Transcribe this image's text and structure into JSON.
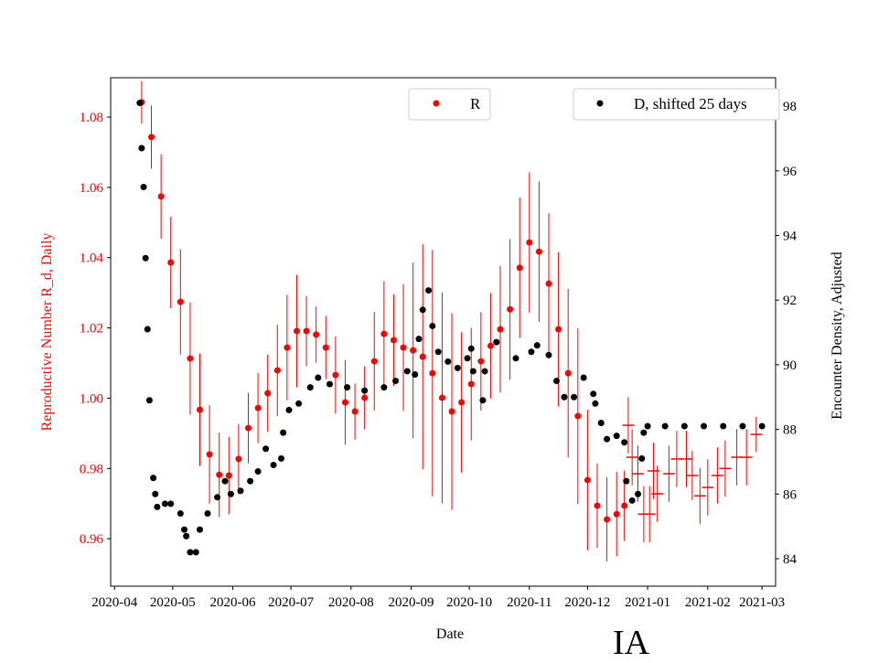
{
  "chart_data": {
    "type": "scatter",
    "xlabel": "Date",
    "ylabel_left": "Reproductive Number R_d, Daily",
    "ylabel_right": "Encounter Density, Adjusted",
    "annotation": "IA",
    "xlim": [
      "2020-03-30",
      "2021-03-08"
    ],
    "ylim_left": [
      0.9465,
      1.0912
    ],
    "ylim_right": [
      83.15,
      98.88
    ],
    "x_ticks": [
      "2020-04-01",
      "2020-05-01",
      "2020-06-01",
      "2020-07-01",
      "2020-08-01",
      "2020-09-01",
      "2020-10-01",
      "2020-11-01",
      "2020-12-01",
      "2021-01-01",
      "2021-02-01",
      "2021-03-01"
    ],
    "x_tick_labels": [
      "2020-04",
      "2020-05",
      "2020-06",
      "2020-07",
      "2020-08",
      "2020-09",
      "2020-10",
      "2020-11",
      "2020-12",
      "2021-01",
      "2021-02",
      "2021-03"
    ],
    "y_ticks_left": [
      "0.96",
      "0.98",
      "1.00",
      "1.02",
      "1.04",
      "1.06",
      "1.08"
    ],
    "y_ticks_right": [
      "84",
      "86",
      "88",
      "90",
      "92",
      "94",
      "96",
      "98"
    ],
    "grid": false,
    "colors": {
      "R": "#ff0000",
      "D": "#000000",
      "left_axis_text": "#ff0000"
    },
    "legends": [
      {
        "label": "R",
        "color": "#ff0000",
        "placement": "top-center"
      },
      {
        "label": "D, shifted 25 days",
        "color": "#000000",
        "placement": "top-right"
      }
    ],
    "series": [
      {
        "name": "R",
        "axis": "left",
        "marker": "dot",
        "points": [
          [
            "2020-04-15",
            1.0842,
            0.006
          ],
          [
            "2020-04-20",
            1.0743,
            0.009
          ],
          [
            "2020-04-25",
            1.0574,
            0.012
          ],
          [
            "2020-04-30",
            1.0386,
            0.013
          ],
          [
            "2020-05-05",
            1.0274,
            0.015
          ],
          [
            "2020-05-10",
            1.0113,
            0.016
          ],
          [
            "2020-05-15",
            0.9967,
            0.016
          ],
          [
            "2020-05-20",
            0.984,
            0.014
          ],
          [
            "2020-05-25",
            0.9782,
            0.012
          ],
          [
            "2020-05-30",
            0.978,
            0.011
          ],
          [
            "2020-06-04",
            0.9827,
            0.01
          ],
          [
            "2020-06-09",
            0.9915,
            0.01
          ],
          [
            "2020-06-14",
            0.9972,
            0.01
          ],
          [
            "2020-06-19",
            1.0014,
            0.011
          ],
          [
            "2020-06-24",
            1.0079,
            0.013
          ],
          [
            "2020-06-29",
            1.0144,
            0.015
          ],
          [
            "2020-07-04",
            1.0191,
            0.016
          ],
          [
            "2020-07-09",
            1.0191,
            0.01
          ],
          [
            "2020-07-14",
            1.0181,
            0.008
          ],
          [
            "2020-07-19",
            1.0144,
            0.009
          ],
          [
            "2020-07-24",
            1.0066,
            0.011
          ],
          [
            "2020-07-29",
            0.9988,
            0.012
          ],
          [
            "2020-08-03",
            0.9962,
            0.008
          ],
          [
            "2020-08-08",
            1.0001,
            0.009
          ],
          [
            "2020-08-13",
            1.0105,
            0.014
          ],
          [
            "2020-08-18",
            1.0183,
            0.015
          ],
          [
            "2020-08-23",
            1.0165,
            0.013
          ],
          [
            "2020-08-28",
            1.0144,
            0.018
          ],
          [
            "2020-09-02",
            1.0136,
            0.025
          ],
          [
            "2020-09-07",
            1.0118,
            0.032
          ],
          [
            "2020-09-12",
            1.0071,
            0.035
          ],
          [
            "2020-09-17",
            1.0001,
            0.03
          ],
          [
            "2020-09-22",
            0.9962,
            0.028
          ],
          [
            "2020-09-27",
            0.9988,
            0.02
          ],
          [
            "2020-10-02",
            1.004,
            0.016
          ],
          [
            "2020-10-07",
            1.0105,
            0.014
          ],
          [
            "2020-10-12",
            1.0149,
            0.015
          ],
          [
            "2020-10-17",
            1.0196,
            0.018
          ],
          [
            "2020-10-22",
            1.0253,
            0.02
          ],
          [
            "2020-10-27",
            1.0371,
            0.02
          ],
          [
            "2020-11-01",
            1.0443,
            0.02
          ],
          [
            "2020-11-06",
            1.0417,
            0.02
          ],
          [
            "2020-11-11",
            1.0326,
            0.02
          ],
          [
            "2020-11-16",
            1.0196,
            0.022
          ],
          [
            "2020-11-21",
            1.0071,
            0.024
          ],
          [
            "2020-11-26",
            0.9949,
            0.025
          ],
          [
            "2020-12-01",
            0.9767,
            0.02
          ],
          [
            "2020-12-06",
            0.9694,
            0.012
          ],
          [
            "2020-12-11",
            0.9655,
            0.012
          ],
          [
            "2020-12-16",
            0.967,
            0.012
          ],
          [
            "2020-12-20",
            0.9694,
            0.01
          ]
        ]
      },
      {
        "name": "R",
        "axis": "left",
        "marker": "cross",
        "points": [
          [
            "2020-12-22",
            0.9923,
            0.008
          ],
          [
            "2020-12-24",
            0.9832,
            0.008
          ],
          [
            "2020-12-27",
            0.9785,
            0.008
          ],
          [
            "2020-12-30",
            0.967,
            0.008
          ],
          [
            "2021-01-02",
            0.967,
            0.008
          ],
          [
            "2021-01-04",
            0.9793,
            0.008
          ],
          [
            "2021-01-06",
            0.9728,
            0.008
          ],
          [
            "2021-01-12",
            0.9785,
            0.008
          ],
          [
            "2021-01-16",
            0.9827,
            0.008
          ],
          [
            "2021-01-21",
            0.9827,
            0.008
          ],
          [
            "2021-01-24",
            0.978,
            0.007
          ],
          [
            "2021-01-28",
            0.9722,
            0.008
          ],
          [
            "2021-02-01",
            0.9746,
            0.008
          ],
          [
            "2021-02-06",
            0.978,
            0.008
          ],
          [
            "2021-02-10",
            0.98,
            0.008
          ],
          [
            "2021-02-16",
            0.9832,
            0.008
          ],
          [
            "2021-02-21",
            0.9832,
            0.008
          ],
          [
            "2021-02-26",
            0.9897,
            0.005
          ]
        ]
      },
      {
        "name": "D, shifted 25 days",
        "axis": "right",
        "marker": "dot",
        "points": [
          [
            "2020-04-14",
            98.1
          ],
          [
            "2020-04-15",
            96.7
          ],
          [
            "2020-04-16",
            95.5
          ],
          [
            "2020-04-17",
            93.3
          ],
          [
            "2020-04-18",
            91.1
          ],
          [
            "2020-04-19",
            88.9
          ],
          [
            "2020-04-21",
            86.5
          ],
          [
            "2020-04-22",
            86.0
          ],
          [
            "2020-04-23",
            85.6
          ],
          [
            "2020-04-27",
            85.7
          ],
          [
            "2020-04-30",
            85.7
          ],
          [
            "2020-05-05",
            85.4
          ],
          [
            "2020-05-07",
            84.9
          ],
          [
            "2020-05-08",
            84.7
          ],
          [
            "2020-05-10",
            84.2
          ],
          [
            "2020-05-13",
            84.2
          ],
          [
            "2020-05-15",
            84.9
          ],
          [
            "2020-05-19",
            85.4
          ],
          [
            "2020-05-24",
            85.9
          ],
          [
            "2020-05-28",
            86.4
          ],
          [
            "2020-05-31",
            86.0
          ],
          [
            "2020-06-05",
            86.1
          ],
          [
            "2020-06-10",
            86.4
          ],
          [
            "2020-06-14",
            86.7
          ],
          [
            "2020-06-18",
            87.4
          ],
          [
            "2020-06-22",
            86.9
          ],
          [
            "2020-06-26",
            87.1
          ],
          [
            "2020-06-27",
            87.9
          ],
          [
            "2020-06-30",
            88.6
          ],
          [
            "2020-07-05",
            88.8
          ],
          [
            "2020-07-11",
            89.3
          ],
          [
            "2020-07-15",
            89.6
          ],
          [
            "2020-07-21",
            89.4
          ],
          [
            "2020-07-30",
            89.3
          ],
          [
            "2020-08-08",
            89.2
          ],
          [
            "2020-08-18",
            89.3
          ],
          [
            "2020-08-24",
            89.5
          ],
          [
            "2020-08-30",
            89.8
          ],
          [
            "2020-09-03",
            89.7
          ],
          [
            "2020-09-05",
            90.8
          ],
          [
            "2020-09-07",
            91.7
          ],
          [
            "2020-09-10",
            92.3
          ],
          [
            "2020-09-12",
            91.2
          ],
          [
            "2020-09-15",
            90.4
          ],
          [
            "2020-09-20",
            90.1
          ],
          [
            "2020-09-25",
            89.9
          ],
          [
            "2020-09-30",
            90.2
          ],
          [
            "2020-10-02",
            90.5
          ],
          [
            "2020-10-03",
            89.8
          ],
          [
            "2020-10-08",
            88.9
          ],
          [
            "2020-10-09",
            89.8
          ],
          [
            "2020-10-15",
            90.7
          ],
          [
            "2020-10-25",
            90.2
          ],
          [
            "2020-11-02",
            90.4
          ],
          [
            "2020-11-05",
            90.6
          ],
          [
            "2020-11-11",
            90.3
          ],
          [
            "2020-11-15",
            89.5
          ],
          [
            "2020-11-19",
            89.0
          ],
          [
            "2020-11-24",
            89.0
          ],
          [
            "2020-11-29",
            89.6
          ],
          [
            "2020-12-04",
            89.1
          ],
          [
            "2020-12-05",
            88.8
          ],
          [
            "2020-12-08",
            88.2
          ],
          [
            "2020-12-11",
            87.7
          ],
          [
            "2020-12-16",
            87.8
          ],
          [
            "2020-12-20",
            87.6
          ],
          [
            "2020-12-21",
            86.4
          ],
          [
            "2020-12-24",
            85.8
          ],
          [
            "2020-12-27",
            86.0
          ],
          [
            "2020-12-29",
            87.1
          ],
          [
            "2020-12-30",
            87.9
          ],
          [
            "2021-01-01",
            88.1
          ],
          [
            "2021-01-10",
            88.1
          ],
          [
            "2021-01-20",
            88.1
          ],
          [
            "2021-01-30",
            88.1
          ],
          [
            "2021-02-09",
            88.1
          ],
          [
            "2021-02-19",
            88.1
          ],
          [
            "2021-03-01",
            88.1
          ]
        ]
      }
    ]
  }
}
